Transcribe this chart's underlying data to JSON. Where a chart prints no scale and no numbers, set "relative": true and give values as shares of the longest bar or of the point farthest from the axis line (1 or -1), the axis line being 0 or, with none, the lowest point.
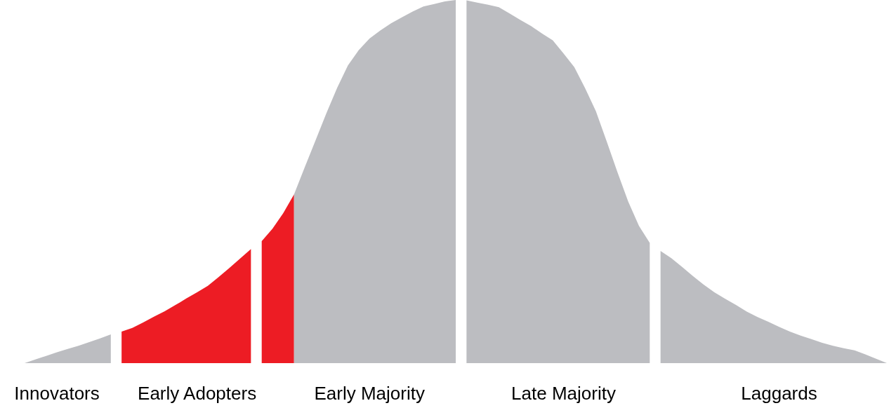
{
  "chart_data": {
    "type": "area",
    "relative": true,
    "marker": "none",
    "grid": false,
    "tick_labels": "x",
    "categories": [
      null,
      null,
      null,
      "Innovators",
      null,
      null,
      null,
      null,
      null,
      null,
      null,
      null,
      null,
      null,
      null,
      null,
      "Early Adopters",
      null,
      null,
      null,
      null,
      null,
      null,
      null,
      null,
      null,
      null,
      null,
      null,
      null,
      null,
      null,
      "Early Majority",
      null,
      null,
      null,
      null,
      null,
      null,
      null,
      null,
      null,
      null,
      null,
      null,
      null,
      null,
      null,
      null,
      null,
      "Late Majority",
      null,
      null,
      null,
      null,
      null,
      null,
      null,
      null,
      null,
      null,
      null,
      null,
      null,
      null,
      null,
      null,
      null,
      null,
      null,
      "Laggards",
      null,
      null,
      null,
      null,
      null,
      null,
      null,
      null,
      null,
      null
    ],
    "series": [
      {
        "color": "#bcbdc1",
        "values": [
          0,
          0.01,
          0.02,
          0.03,
          0.039,
          0.048,
          0.058,
          0.068,
          0.079,
          null,
          null,
          null,
          null,
          null,
          null,
          null,
          null,
          null,
          null,
          null,
          null,
          null,
          null,
          null,
          null,
          null,
          null,
          null,
          null,
          null,
          null,
          null,
          null,
          null,
          null,
          null,
          null,
          null,
          null,
          null,
          null,
          null,
          null,
          null,
          null,
          null,
          null,
          null,
          null,
          null,
          null,
          null,
          null,
          null,
          null,
          null,
          null,
          null,
          null,
          null,
          null,
          null,
          null,
          null,
          null,
          null,
          null,
          null,
          null,
          null,
          null,
          null,
          null,
          null,
          null,
          null,
          null,
          null,
          null,
          null,
          null
        ]
      },
      {
        "color": "#ed1c24",
        "values": [
          null,
          null,
          null,
          null,
          null,
          null,
          null,
          null,
          null,
          0.087,
          0.097,
          0.112,
          0.128,
          0.143,
          0.16,
          0.178,
          0.195,
          0.213,
          0.237,
          0.262,
          0.288,
          0.314,
          null,
          null,
          null,
          null,
          null,
          null,
          null,
          null,
          null,
          null,
          null,
          null,
          null,
          null,
          null,
          null,
          null,
          null,
          null,
          null,
          null,
          null,
          null,
          null,
          null,
          null,
          null,
          null,
          null,
          null,
          null,
          null,
          null,
          null,
          null,
          null,
          null,
          null,
          null,
          null,
          null,
          null,
          null,
          null,
          null,
          null,
          null,
          null,
          null,
          null,
          null,
          null,
          null,
          null,
          null,
          null,
          null,
          null,
          null
        ]
      },
      {
        "color": "#ed1c24",
        "values": [
          null,
          null,
          null,
          null,
          null,
          null,
          null,
          null,
          null,
          null,
          null,
          null,
          null,
          null,
          null,
          null,
          null,
          null,
          null,
          null,
          null,
          null,
          0.336,
          0.37,
          0.413,
          0.465,
          null,
          null,
          null,
          null,
          null,
          null,
          null,
          null,
          null,
          null,
          null,
          null,
          null,
          null,
          null,
          null,
          null,
          null,
          null,
          null,
          null,
          null,
          null,
          null,
          null,
          null,
          null,
          null,
          null,
          null,
          null,
          null,
          null,
          null,
          null,
          null,
          null,
          null,
          null,
          null,
          null,
          null,
          null,
          null,
          null,
          null,
          null,
          null,
          null,
          null,
          null,
          null,
          null,
          null,
          null
        ]
      },
      {
        "color": "#bcbdc1",
        "values": [
          null,
          null,
          null,
          null,
          null,
          null,
          null,
          null,
          null,
          null,
          null,
          null,
          null,
          null,
          null,
          null,
          null,
          null,
          null,
          null,
          null,
          null,
          null,
          null,
          null,
          0.465,
          0.54,
          0.614,
          0.688,
          0.758,
          0.82,
          0.862,
          0.894,
          0.916,
          0.936,
          0.952,
          0.968,
          0.982,
          0.989,
          0.996,
          1,
          null,
          null,
          null,
          null,
          null,
          null,
          null,
          null,
          null,
          null,
          null,
          null,
          null,
          null,
          null,
          null,
          null,
          null,
          null,
          null,
          null,
          null,
          null,
          null,
          null,
          null,
          null,
          null,
          null,
          null,
          null,
          null,
          null,
          null,
          null,
          null,
          null,
          null,
          null,
          null
        ]
      },
      {
        "color": "#bcbdc1",
        "values": [
          null,
          null,
          null,
          null,
          null,
          null,
          null,
          null,
          null,
          null,
          null,
          null,
          null,
          null,
          null,
          null,
          null,
          null,
          null,
          null,
          null,
          null,
          null,
          null,
          null,
          null,
          null,
          null,
          null,
          null,
          null,
          null,
          null,
          null,
          null,
          null,
          null,
          null,
          null,
          null,
          null,
          0.999,
          0.993,
          0.987,
          0.98,
          0.963,
          0.945,
          0.928,
          0.908,
          0.889,
          0.853,
          0.815,
          0.757,
          0.694,
          0.611,
          0.526,
          0.445,
          0.378,
          0.331,
          null,
          null,
          null,
          null,
          null,
          null,
          null,
          null,
          null,
          null,
          null,
          null,
          null,
          null,
          null,
          null,
          null,
          null,
          null,
          null,
          null,
          null
        ]
      },
      {
        "color": "#bcbdc1",
        "values": [
          null,
          null,
          null,
          null,
          null,
          null,
          null,
          null,
          null,
          null,
          null,
          null,
          null,
          null,
          null,
          null,
          null,
          null,
          null,
          null,
          null,
          null,
          null,
          null,
          null,
          null,
          null,
          null,
          null,
          null,
          null,
          null,
          null,
          null,
          null,
          null,
          null,
          null,
          null,
          null,
          null,
          null,
          null,
          null,
          null,
          null,
          null,
          null,
          null,
          null,
          null,
          null,
          null,
          null,
          null,
          null,
          null,
          null,
          null,
          0.309,
          0.289,
          0.265,
          0.24,
          0.216,
          0.195,
          0.177,
          0.16,
          0.142,
          0.127,
          0.114,
          0.1,
          0.087,
          0.076,
          0.066,
          0.056,
          0.048,
          0.041,
          0.035,
          0.024,
          0.012,
          0
        ]
      }
    ]
  }
}
